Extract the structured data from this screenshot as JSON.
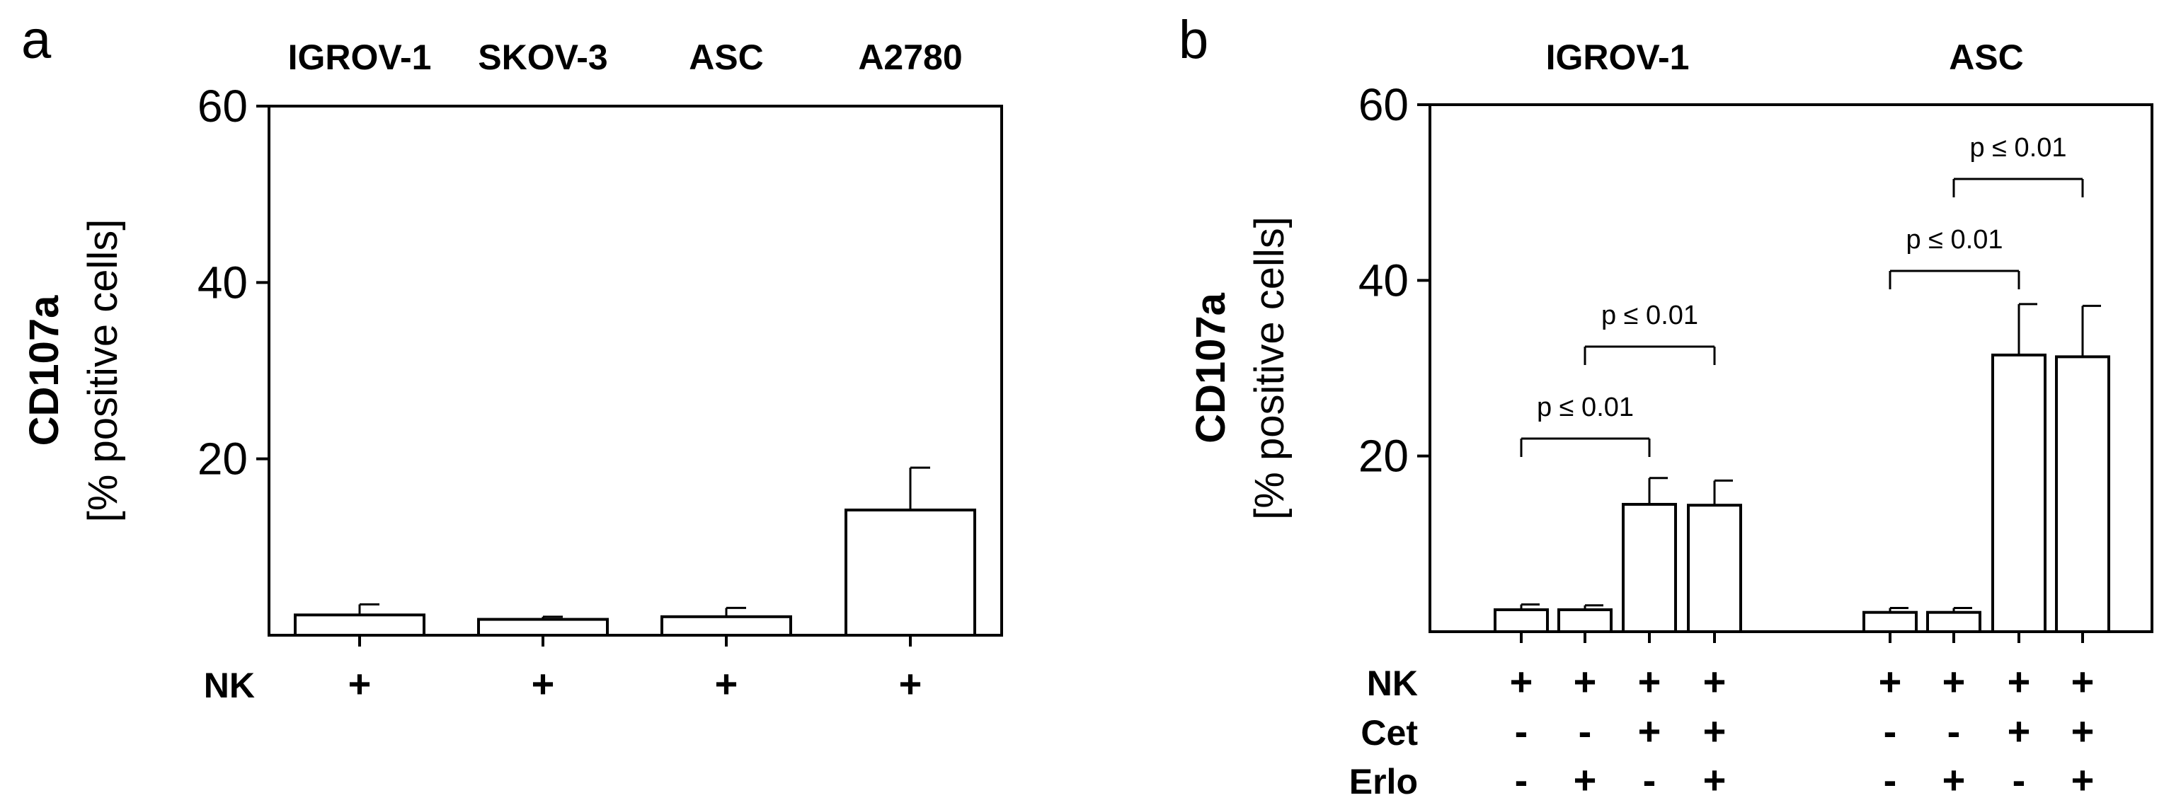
{
  "chart_data": [
    {
      "panel": "a",
      "type": "bar",
      "ylabel": "CD107a",
      "ylabel2": "[% positive cells]",
      "ylim": [
        0,
        60
      ],
      "yticks": [
        "20",
        "40",
        "60"
      ],
      "categories": [
        "IGROV-1",
        "SKOV-3",
        "ASC",
        "A2780"
      ],
      "values": [
        2.3,
        1.8,
        2.1,
        14.2
      ],
      "errors": [
        1.2,
        0.3,
        1.0,
        4.8
      ],
      "rows": [
        {
          "label": "NK",
          "signs": [
            "+",
            "+",
            "+",
            "+"
          ]
        }
      ]
    },
    {
      "panel": "b",
      "type": "bar",
      "ylabel": "CD107a",
      "ylabel2": "[% positive cells]",
      "ylim": [
        0,
        60
      ],
      "yticks": [
        "20",
        "40",
        "60"
      ],
      "groups": [
        "IGROV-1",
        "ASC"
      ],
      "values": [
        2.5,
        2.5,
        14.5,
        14.4,
        2.2,
        2.2,
        31.5,
        31.3
      ],
      "errors": [
        0.6,
        0.5,
        3.0,
        2.8,
        0.5,
        0.5,
        5.8,
        5.8
      ],
      "rows": [
        {
          "label": "NK",
          "signs": [
            "+",
            "+",
            "+",
            "+",
            "+",
            "+",
            "+",
            "+"
          ]
        },
        {
          "label": "Cet",
          "signs": [
            "-",
            "-",
            "+",
            "+",
            "-",
            "-",
            "+",
            "+"
          ]
        },
        {
          "label": "Erlo",
          "signs": [
            "-",
            "+",
            "-",
            "+",
            "-",
            "+",
            "-",
            "+"
          ]
        }
      ],
      "significance": [
        {
          "from": 0,
          "to": 2,
          "label": "p ≤ 0.01"
        },
        {
          "from": 1,
          "to": 3,
          "label": "p ≤ 0.01"
        },
        {
          "from": 4,
          "to": 6,
          "label": "p ≤ 0.01"
        },
        {
          "from": 5,
          "to": 7,
          "label": "p ≤ 0.01"
        }
      ]
    }
  ]
}
